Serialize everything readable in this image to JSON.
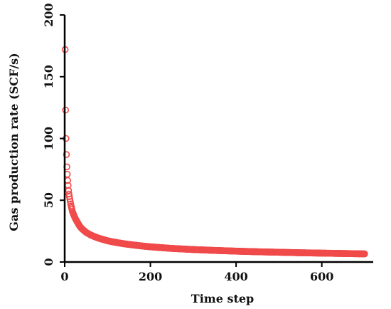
{
  "chart_data": {
    "type": "scatter",
    "title": "",
    "xlabel": "Time step",
    "ylabel": "Gas production rate (SCF/s)",
    "xlim": [
      0,
      720
    ],
    "ylim": [
      0,
      200
    ],
    "x_ticks": [
      "0",
      "200",
      "400",
      "600"
    ],
    "y_ticks": [
      "0",
      "50",
      "100",
      "150",
      "200"
    ],
    "grid": false,
    "legend": "none",
    "series": [
      {
        "color": "#f04a4a",
        "marker": "open-circle",
        "x": [
          1,
          2,
          3,
          4,
          5,
          6,
          7,
          8,
          9,
          10,
          12,
          14,
          16,
          18,
          20,
          25,
          30,
          35,
          40,
          50,
          60,
          70,
          80,
          100,
          120,
          140,
          160,
          180,
          200,
          250,
          300,
          350,
          400,
          450,
          500,
          550,
          600,
          650,
          700
        ],
        "y": [
          172,
          123,
          100,
          87,
          77,
          71,
          66,
          62,
          58,
          55,
          51,
          47,
          44,
          41,
          39,
          35,
          32,
          29,
          27,
          24,
          22,
          20.5,
          19.2,
          17.2,
          15.8,
          14.7,
          13.8,
          13.0,
          12.3,
          11.0,
          10.1,
          9.4,
          8.8,
          8.3,
          7.9,
          7.5,
          7.2,
          6.9,
          6.6
        ]
      }
    ]
  }
}
